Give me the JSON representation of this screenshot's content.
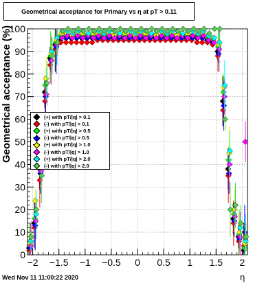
{
  "chart_data": {
    "type": "scatter",
    "title": "Geometrical acceptance for Primary vs    η at pT  > 0.11",
    "xlabel": "η",
    "ylabel": "Geometrical acceptance (%)",
    "xlim": [
      -2.1,
      2.1
    ],
    "ylim": [
      0,
      100
    ],
    "x_ticks": [
      -2,
      -1.5,
      -1,
      -0.5,
      0,
      0.5,
      1,
      1.5,
      2
    ],
    "x_tick_labels": [
      "−2",
      "−1.5",
      "−1",
      "−0.5",
      "0",
      "0.5",
      "1",
      "1.5",
      "2"
    ],
    "y_ticks": [
      0,
      10,
      20,
      30,
      40,
      50,
      60,
      70,
      80,
      90,
      100
    ],
    "y_tick_labels": [
      "0",
      "10",
      "20",
      "30",
      "40",
      "50",
      "60",
      "70",
      "80",
      "90",
      "100"
    ],
    "grid": true,
    "legend_position": "left-middle",
    "series": [
      {
        "name": "(+) with pT/|q| > 0.1",
        "color": "#000000",
        "x": [
          -2.05,
          -1.95,
          -1.85,
          -1.75,
          -1.65,
          -1.55,
          -1.45,
          -1.35,
          -1.25,
          -1.15,
          -1.05,
          -0.95,
          -0.85,
          -0.75,
          -0.65,
          -0.55,
          -0.45,
          -0.35,
          -0.25,
          -0.15,
          -0.05,
          0.05,
          0.15,
          0.25,
          0.35,
          0.45,
          0.55,
          0.65,
          0.75,
          0.85,
          0.95,
          1.05,
          1.15,
          1.25,
          1.35,
          1.45,
          1.55,
          1.65,
          1.75,
          1.85,
          1.95,
          2.05
        ],
        "y": [
          3,
          14,
          38,
          72,
          87,
          93,
          95,
          96,
          96,
          96,
          96,
          96,
          96,
          96,
          96,
          96,
          96,
          96,
          96,
          96,
          96,
          96,
          96,
          96,
          96,
          96,
          96,
          96,
          96,
          96,
          96,
          96,
          96,
          96,
          95,
          94,
          90,
          68,
          38,
          16,
          8,
          2
        ]
      },
      {
        "name": "(-) with pT/|q| > 0.1",
        "color": "#ff0000",
        "x": [
          -2.05,
          -1.95,
          -1.85,
          -1.75,
          -1.65,
          -1.55,
          -1.45,
          -1.35,
          -1.25,
          -1.15,
          -1.05,
          -0.95,
          -0.85,
          -0.75,
          -0.65,
          -0.55,
          -0.45,
          -0.35,
          -0.25,
          -0.15,
          -0.05,
          0.05,
          0.15,
          0.25,
          0.35,
          0.45,
          0.55,
          0.65,
          0.75,
          0.85,
          0.95,
          1.05,
          1.15,
          1.25,
          1.35,
          1.45,
          1.55,
          1.65,
          1.75,
          1.85,
          1.95,
          2.05
        ],
        "y": [
          2,
          12,
          33,
          68,
          84,
          91,
          94,
          94,
          94,
          94,
          94,
          94,
          94,
          95,
          95,
          95,
          95,
          95,
          95,
          95,
          95,
          95,
          95,
          95,
          95,
          95,
          95,
          95,
          95,
          95,
          95,
          95,
          94,
          94,
          94,
          93,
          88,
          64,
          35,
          14,
          6,
          4
        ]
      },
      {
        "name": "(+) with pT/|q| > 0.5",
        "color": "#00ff00",
        "x": [
          -2.05,
          -1.95,
          -1.85,
          -1.75,
          -1.65,
          -1.55,
          -1.45,
          -1.35,
          -1.25,
          -1.15,
          -1.05,
          -0.95,
          -0.85,
          -0.75,
          -0.65,
          -0.55,
          -0.45,
          -0.35,
          -0.25,
          -0.15,
          -0.05,
          0.05,
          0.15,
          0.25,
          0.35,
          0.45,
          0.55,
          0.65,
          0.75,
          0.85,
          0.95,
          1.05,
          1.15,
          1.25,
          1.35,
          1.45,
          1.55,
          1.65,
          1.75,
          1.85,
          1.95,
          2.05
        ],
        "y": [
          4,
          16,
          40,
          75,
          88,
          94,
          97,
          97,
          97,
          97,
          97,
          97,
          97,
          97,
          97,
          97,
          97,
          97,
          97,
          97,
          97,
          97,
          97,
          97,
          97,
          97,
          97,
          97,
          97,
          97,
          97,
          97,
          97,
          97,
          96,
          95,
          92,
          72,
          42,
          18,
          9,
          3
        ]
      },
      {
        "name": "(-) with pT/|q| > 0.5",
        "color": "#0000ff",
        "x": [
          -2.05,
          -1.95,
          -1.85,
          -1.75,
          -1.65,
          -1.55,
          -1.45,
          -1.35,
          -1.25,
          -1.15,
          -1.05,
          -0.95,
          -0.85,
          -0.75,
          -0.65,
          -0.55,
          -0.45,
          -0.35,
          -0.25,
          -0.15,
          -0.05,
          0.05,
          0.15,
          0.25,
          0.35,
          0.45,
          0.55,
          0.65,
          0.75,
          0.85,
          0.95,
          1.05,
          1.15,
          1.25,
          1.35,
          1.45,
          1.55,
          1.65,
          1.75,
          1.85,
          1.95,
          2.05
        ],
        "y": [
          3,
          13,
          36,
          70,
          86,
          92,
          96,
          96,
          96,
          96,
          96,
          96,
          96,
          96,
          96,
          96,
          96,
          96,
          96,
          96,
          96,
          96,
          96,
          96,
          96,
          96,
          96,
          96,
          96,
          96,
          96,
          96,
          96,
          96,
          95,
          94,
          89,
          66,
          36,
          15,
          7,
          10
        ]
      },
      {
        "name": "(+) with pT/|q| > 1.0",
        "color": "#ffff00",
        "x": [
          -2.05,
          -1.95,
          -1.85,
          -1.75,
          -1.65,
          -1.55,
          -1.45,
          -1.35,
          -1.25,
          -1.15,
          -1.05,
          -0.95,
          -0.85,
          -0.75,
          -0.65,
          -0.55,
          -0.45,
          -0.35,
          -0.25,
          -0.15,
          -0.05,
          0.05,
          0.15,
          0.25,
          0.35,
          0.45,
          0.55,
          0.65,
          0.75,
          0.85,
          0.95,
          1.05,
          1.15,
          1.25,
          1.35,
          1.45,
          1.55,
          1.65,
          1.75,
          1.85,
          1.95,
          2.05
        ],
        "y": [
          5,
          24,
          42,
          78,
          89,
          95,
          98,
          98,
          97,
          98,
          98,
          97,
          98,
          98,
          98,
          98,
          97,
          98,
          98,
          98,
          97,
          98,
          98,
          98,
          97,
          98,
          98,
          98,
          97,
          98,
          98,
          97,
          98,
          98,
          97,
          96,
          93,
          74,
          45,
          20,
          10,
          5
        ]
      },
      {
        "name": "(-) with pT/|q| > 1.0",
        "color": "#ff00ff",
        "x": [
          -2.05,
          -1.95,
          -1.85,
          -1.75,
          -1.65,
          -1.55,
          -1.45,
          -1.35,
          -1.25,
          -1.15,
          -1.05,
          -0.95,
          -0.85,
          -0.75,
          -0.65,
          -0.55,
          -0.45,
          -0.35,
          -0.25,
          -0.15,
          -0.05,
          0.05,
          0.15,
          0.25,
          0.35,
          0.45,
          0.55,
          0.65,
          0.75,
          0.85,
          0.95,
          1.05,
          1.15,
          1.25,
          1.35,
          1.45,
          1.55,
          1.65,
          1.75,
          1.85,
          1.95,
          2.05
        ],
        "y": [
          4,
          15,
          37,
          71,
          86,
          93,
          96,
          97,
          96,
          97,
          96,
          97,
          96,
          97,
          96,
          97,
          96,
          97,
          96,
          97,
          96,
          97,
          96,
          97,
          96,
          97,
          96,
          97,
          96,
          97,
          96,
          97,
          96,
          97,
          95,
          94,
          91,
          70,
          40,
          17,
          8,
          50
        ]
      },
      {
        "name": "(+) with pT/|q| > 2.0",
        "color": "#00ffff",
        "x": [
          -2.05,
          -1.95,
          -1.85,
          -1.75,
          -1.65,
          -1.55,
          -1.45,
          -1.35,
          -1.25,
          -1.15,
          -1.05,
          -0.95,
          -0.85,
          -0.75,
          -0.65,
          -0.55,
          -0.45,
          -0.35,
          -0.25,
          -0.15,
          -0.05,
          0.05,
          0.15,
          0.25,
          0.35,
          0.45,
          0.55,
          0.65,
          0.75,
          0.85,
          0.95,
          1.05,
          1.15,
          1.25,
          1.35,
          1.45,
          1.55,
          1.65,
          1.75,
          1.85,
          1.95,
          2.05
        ],
        "y": [
          6,
          18,
          44,
          76,
          90,
          96,
          99,
          99,
          98,
          99,
          99,
          98,
          99,
          99,
          98,
          99,
          99,
          98,
          99,
          99,
          98,
          99,
          99,
          98,
          99,
          99,
          98,
          99,
          99,
          98,
          99,
          99,
          98,
          99,
          97,
          96,
          94,
          75,
          46,
          22,
          12,
          6
        ]
      },
      {
        "name": "(-) with pT/|q| > 2.0",
        "color": "#55cc55",
        "x": [
          -2.05,
          -1.95,
          -1.85,
          -1.75,
          -1.65,
          -1.55,
          -1.45,
          -1.35,
          -1.25,
          -1.15,
          -1.05,
          -0.95,
          -0.85,
          -0.75,
          -0.65,
          -0.55,
          -0.45,
          -0.35,
          -0.25,
          -0.15,
          -0.05,
          0.05,
          0.15,
          0.25,
          0.35,
          0.45,
          0.55,
          0.65,
          0.75,
          0.85,
          0.95,
          1.05,
          1.15,
          1.25,
          1.35,
          1.45,
          1.55,
          1.65,
          1.75,
          1.85,
          1.95,
          2.05
        ],
        "y": [
          8,
          20,
          35,
          76,
          88,
          94,
          99,
          100,
          99,
          100,
          99,
          100,
          99,
          100,
          99,
          100,
          99,
          100,
          99,
          100,
          99,
          100,
          99,
          100,
          99,
          100,
          99,
          100,
          99,
          100,
          99,
          100,
          99,
          100,
          98,
          100,
          100,
          60,
          20,
          22,
          14,
          8
        ]
      }
    ]
  },
  "footer": {
    "timestamp": "Wed Nov 11 11:00:22 2020"
  }
}
